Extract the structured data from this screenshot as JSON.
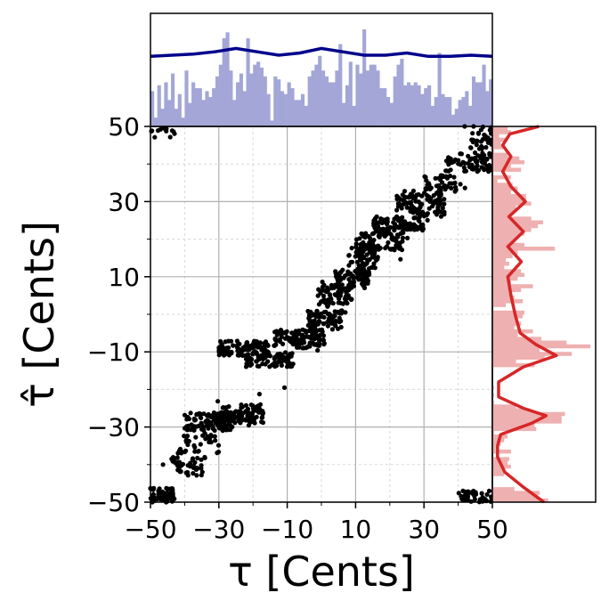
{
  "chart_data": {
    "type": "scatter",
    "xlabel": "τ [Cents]",
    "ylabel": "τ̂ [Cents]",
    "xlim": [
      -50,
      50
    ],
    "ylim": [
      -50,
      50
    ],
    "x_ticks": [
      -50,
      -30,
      -10,
      10,
      30,
      50
    ],
    "y_ticks": [
      -50,
      -30,
      -10,
      10,
      30,
      50
    ],
    "x_tick_labels": [
      "−50",
      "−30",
      "−10",
      "10",
      "30",
      "50"
    ],
    "y_tick_labels": [
      "−50",
      "−30",
      "−10",
      "10",
      "30",
      "50"
    ],
    "grid": true,
    "colors": {
      "points": "#000000",
      "top_hist": "#a3a6d6",
      "top_kde": "#00008b",
      "right_hist": "#eeb0b0",
      "right_kde": "#d62728",
      "grid_major": "#b0b0b0",
      "grid_minor": "#d8d8d8"
    },
    "scatter_clusters": [
      {
        "x": [
          -50,
          -43
        ],
        "y": [
          -50,
          -46
        ],
        "n": 60
      },
      {
        "x": [
          -44,
          -34
        ],
        "y": [
          -43,
          -38
        ],
        "n": 40
      },
      {
        "x": [
          -42,
          -30
        ],
        "y": [
          -37,
          -32
        ],
        "n": 30
      },
      {
        "x": [
          -40,
          -26
        ],
        "y": [
          -31,
          -26
        ],
        "n": 120
      },
      {
        "x": [
          -29,
          -17
        ],
        "y": [
          -29,
          -24
        ],
        "n": 90
      },
      {
        "x": [
          -30,
          -15
        ],
        "y": [
          -11,
          -7
        ],
        "n": 110
      },
      {
        "x": [
          -22,
          -8
        ],
        "y": [
          -14,
          -10
        ],
        "n": 90
      },
      {
        "x": [
          -14,
          1
        ],
        "y": [
          -9,
          -4
        ],
        "n": 110
      },
      {
        "x": [
          -4,
          6
        ],
        "y": [
          -4,
          1
        ],
        "n": 80
      },
      {
        "x": [
          -1,
          9
        ],
        "y": [
          2,
          8
        ],
        "n": 80
      },
      {
        "x": [
          4,
          14
        ],
        "y": [
          7,
          12
        ],
        "n": 70
      },
      {
        "x": [
          8,
          17
        ],
        "y": [
          12,
          18
        ],
        "n": 60
      },
      {
        "x": [
          10,
          24
        ],
        "y": [
          17,
          22
        ],
        "n": 90
      },
      {
        "x": [
          15,
          30
        ],
        "y": [
          22,
          26
        ],
        "n": 100
      },
      {
        "x": [
          22,
          36
        ],
        "y": [
          26,
          32
        ],
        "n": 100
      },
      {
        "x": [
          30,
          42
        ],
        "y": [
          32,
          37
        ],
        "n": 50
      },
      {
        "x": [
          36,
          50
        ],
        "y": [
          38,
          43
        ],
        "n": 70
      },
      {
        "x": [
          43,
          50
        ],
        "y": [
          44,
          50
        ],
        "n": 30
      },
      {
        "x": [
          40,
          50
        ],
        "y": [
          -50,
          -47
        ],
        "n": 40
      },
      {
        "x": [
          -50,
          -40
        ],
        "y": [
          47,
          50
        ],
        "n": 12
      }
    ],
    "top_kde_density": [
      0.62,
      0.63,
      0.64,
      0.66,
      0.69,
      0.66,
      0.63,
      0.65,
      0.69,
      0.66,
      0.63,
      0.63,
      0.65,
      0.62,
      0.62,
      0.63,
      0.62
    ],
    "right_kde_y": [
      50,
      48,
      45,
      42,
      38,
      34,
      30,
      26,
      22,
      18,
      14,
      10,
      5,
      0,
      -5,
      -8,
      -11,
      -14,
      -18,
      -22,
      -25,
      -27,
      -29,
      -32,
      -35,
      -38,
      -42,
      -46,
      -49,
      -50
    ],
    "right_kde_density": [
      0.45,
      0.17,
      0.1,
      0.18,
      0.1,
      0.18,
      0.32,
      0.16,
      0.3,
      0.15,
      0.28,
      0.15,
      0.18,
      0.22,
      0.27,
      0.42,
      0.62,
      0.3,
      0.06,
      0.06,
      0.3,
      0.52,
      0.38,
      0.08,
      0.05,
      0.05,
      0.12,
      0.3,
      0.45,
      0.5
    ]
  }
}
